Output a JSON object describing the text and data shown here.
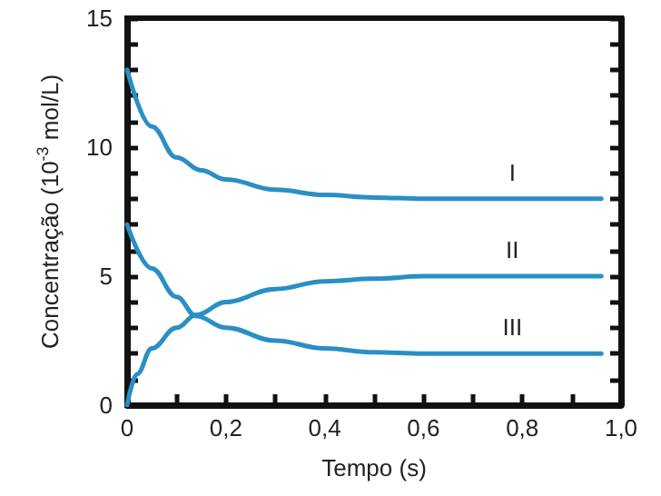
{
  "chart_data": {
    "type": "line",
    "xlabel": "Tempo (s)",
    "ylabel": "Concentração (10$^{-3}$ mol/L)",
    "xlim": [
      0,
      1
    ],
    "ylim": [
      0,
      15
    ],
    "xticks": [
      0,
      {
        "value": 0.1,
        "label": null
      },
      {
        "value": 0.2,
        "label": "0,2"
      },
      {
        "value": 0.3,
        "label": null
      },
      {
        "value": 0.4,
        "label": "0,4"
      },
      {
        "value": 0.5,
        "label": null
      },
      {
        "value": 0.6,
        "label": "0,6"
      },
      {
        "value": 0.7,
        "label": null
      },
      {
        "value": 0.8,
        "label": "0,8"
      },
      {
        "value": 0.9,
        "label": null
      },
      {
        "value": 1,
        "label": "1,0"
      }
    ],
    "yticks": [
      0,
      {
        "value": 1,
        "label": null
      },
      {
        "value": 2,
        "label": null
      },
      {
        "value": 3,
        "label": null
      },
      {
        "value": 4,
        "label": null
      },
      5,
      {
        "value": 6,
        "label": null
      },
      {
        "value": 7,
        "label": null
      },
      {
        "value": 8,
        "label": null
      },
      {
        "value": 9,
        "label": null
      },
      10,
      {
        "value": 11,
        "label": null
      },
      {
        "value": 12,
        "label": null
      },
      {
        "value": 13,
        "label": null
      },
      {
        "value": 14,
        "label": null
      },
      15
    ],
    "grid": false,
    "marker": "none",
    "line_style": "solid",
    "series": [
      {
        "name": "I",
        "color": "#2a8fc4",
        "x": [
          0,
          0.05,
          0.1,
          0.15,
          0.2,
          0.3,
          0.4,
          0.5,
          0.6,
          0.78,
          0.96
        ],
        "values": [
          13,
          10.8,
          9.6,
          9.1,
          8.75,
          8.35,
          8.15,
          8.05,
          8.0,
          8.0,
          8.0
        ]
      },
      {
        "name": "II",
        "color": "#2a8fc4",
        "x": [
          0,
          0.02,
          0.05,
          0.1,
          0.14,
          0.2,
          0.3,
          0.4,
          0.5,
          0.6,
          0.78,
          0.96
        ],
        "values": [
          0,
          1.2,
          2.2,
          3.0,
          3.5,
          4.0,
          4.5,
          4.8,
          4.9,
          5.0,
          5.0,
          5.0
        ]
      },
      {
        "name": "III",
        "color": "#2a8fc4",
        "x": [
          0,
          0.05,
          0.1,
          0.14,
          0.2,
          0.3,
          0.4,
          0.5,
          0.6,
          0.78,
          0.96
        ],
        "values": [
          7,
          5.3,
          4.2,
          3.45,
          3.0,
          2.5,
          2.2,
          2.05,
          2.0,
          2.0,
          2.0
        ]
      }
    ]
  }
}
